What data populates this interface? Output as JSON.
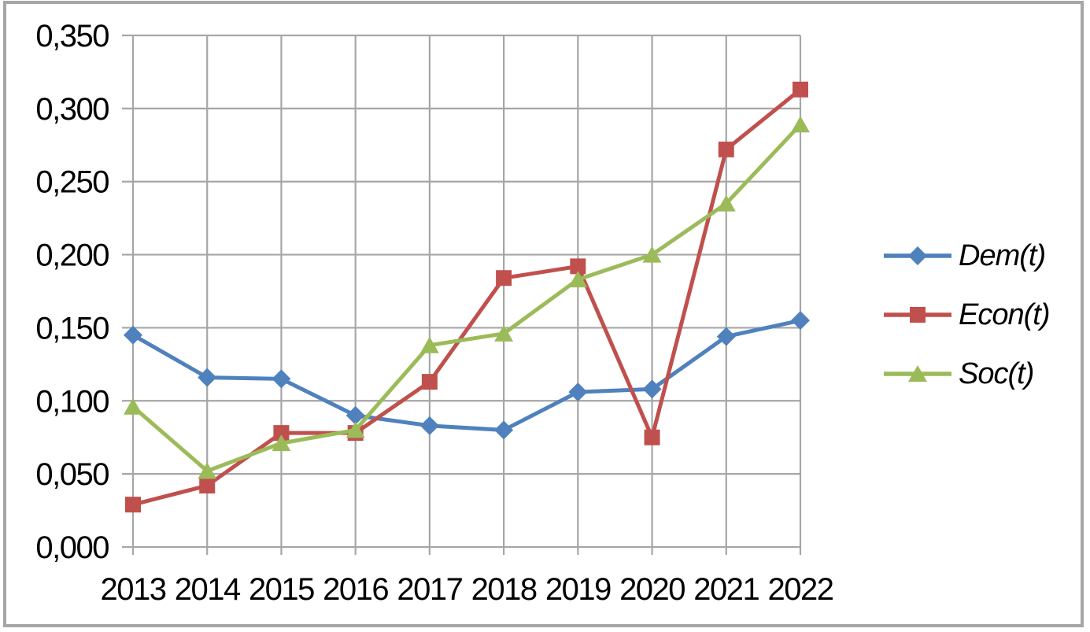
{
  "figure": {
    "background": "#FFFFFF",
    "border_color": "#A6A6A6"
  },
  "chart_data": {
    "type": "line",
    "title": "",
    "xlabel": "",
    "ylabel": "",
    "categories": [
      "2013",
      "2014",
      "2015",
      "2016",
      "2017",
      "2018",
      "2019",
      "2020",
      "2021",
      "2022"
    ],
    "series": [
      {
        "name": "Dem(t)",
        "color": "#4F81BD",
        "marker": "diamond",
        "values": [
          0.145,
          0.116,
          0.115,
          0.09,
          0.083,
          0.08,
          0.106,
          0.108,
          0.144,
          0.155
        ]
      },
      {
        "name": "Econ(t)",
        "color": "#C0504D",
        "marker": "square",
        "values": [
          0.029,
          0.042,
          0.078,
          0.078,
          0.113,
          0.184,
          0.192,
          0.075,
          0.272,
          0.313
        ]
      },
      {
        "name": "Soc(t)",
        "color": "#9BBB59",
        "marker": "triangle",
        "values": [
          0.096,
          0.052,
          0.071,
          0.08,
          0.138,
          0.146,
          0.183,
          0.2,
          0.235,
          0.289
        ]
      }
    ],
    "y_axis": {
      "min": 0,
      "max": 0.35,
      "step": 0.05,
      "decimal_separator": ",",
      "tick_labels": [
        "0,000",
        "0,050",
        "0,100",
        "0,150",
        "0,200",
        "0,250",
        "0,300",
        "0,350"
      ]
    },
    "x_axis": {
      "tick_labels": [
        "2013",
        "2014",
        "2015",
        "2016",
        "2017",
        "2018",
        "2019",
        "2020",
        "2021",
        "2022"
      ]
    },
    "ylim": [
      0,
      0.35
    ],
    "grid": {
      "horizontal": true,
      "vertical": true,
      "color": "#A6A6A6"
    },
    "axis_text_color": "#000000",
    "legend": {
      "position": "right",
      "items": [
        "Dem(t)",
        "Econ(t)",
        "Soc(t)"
      ]
    }
  }
}
